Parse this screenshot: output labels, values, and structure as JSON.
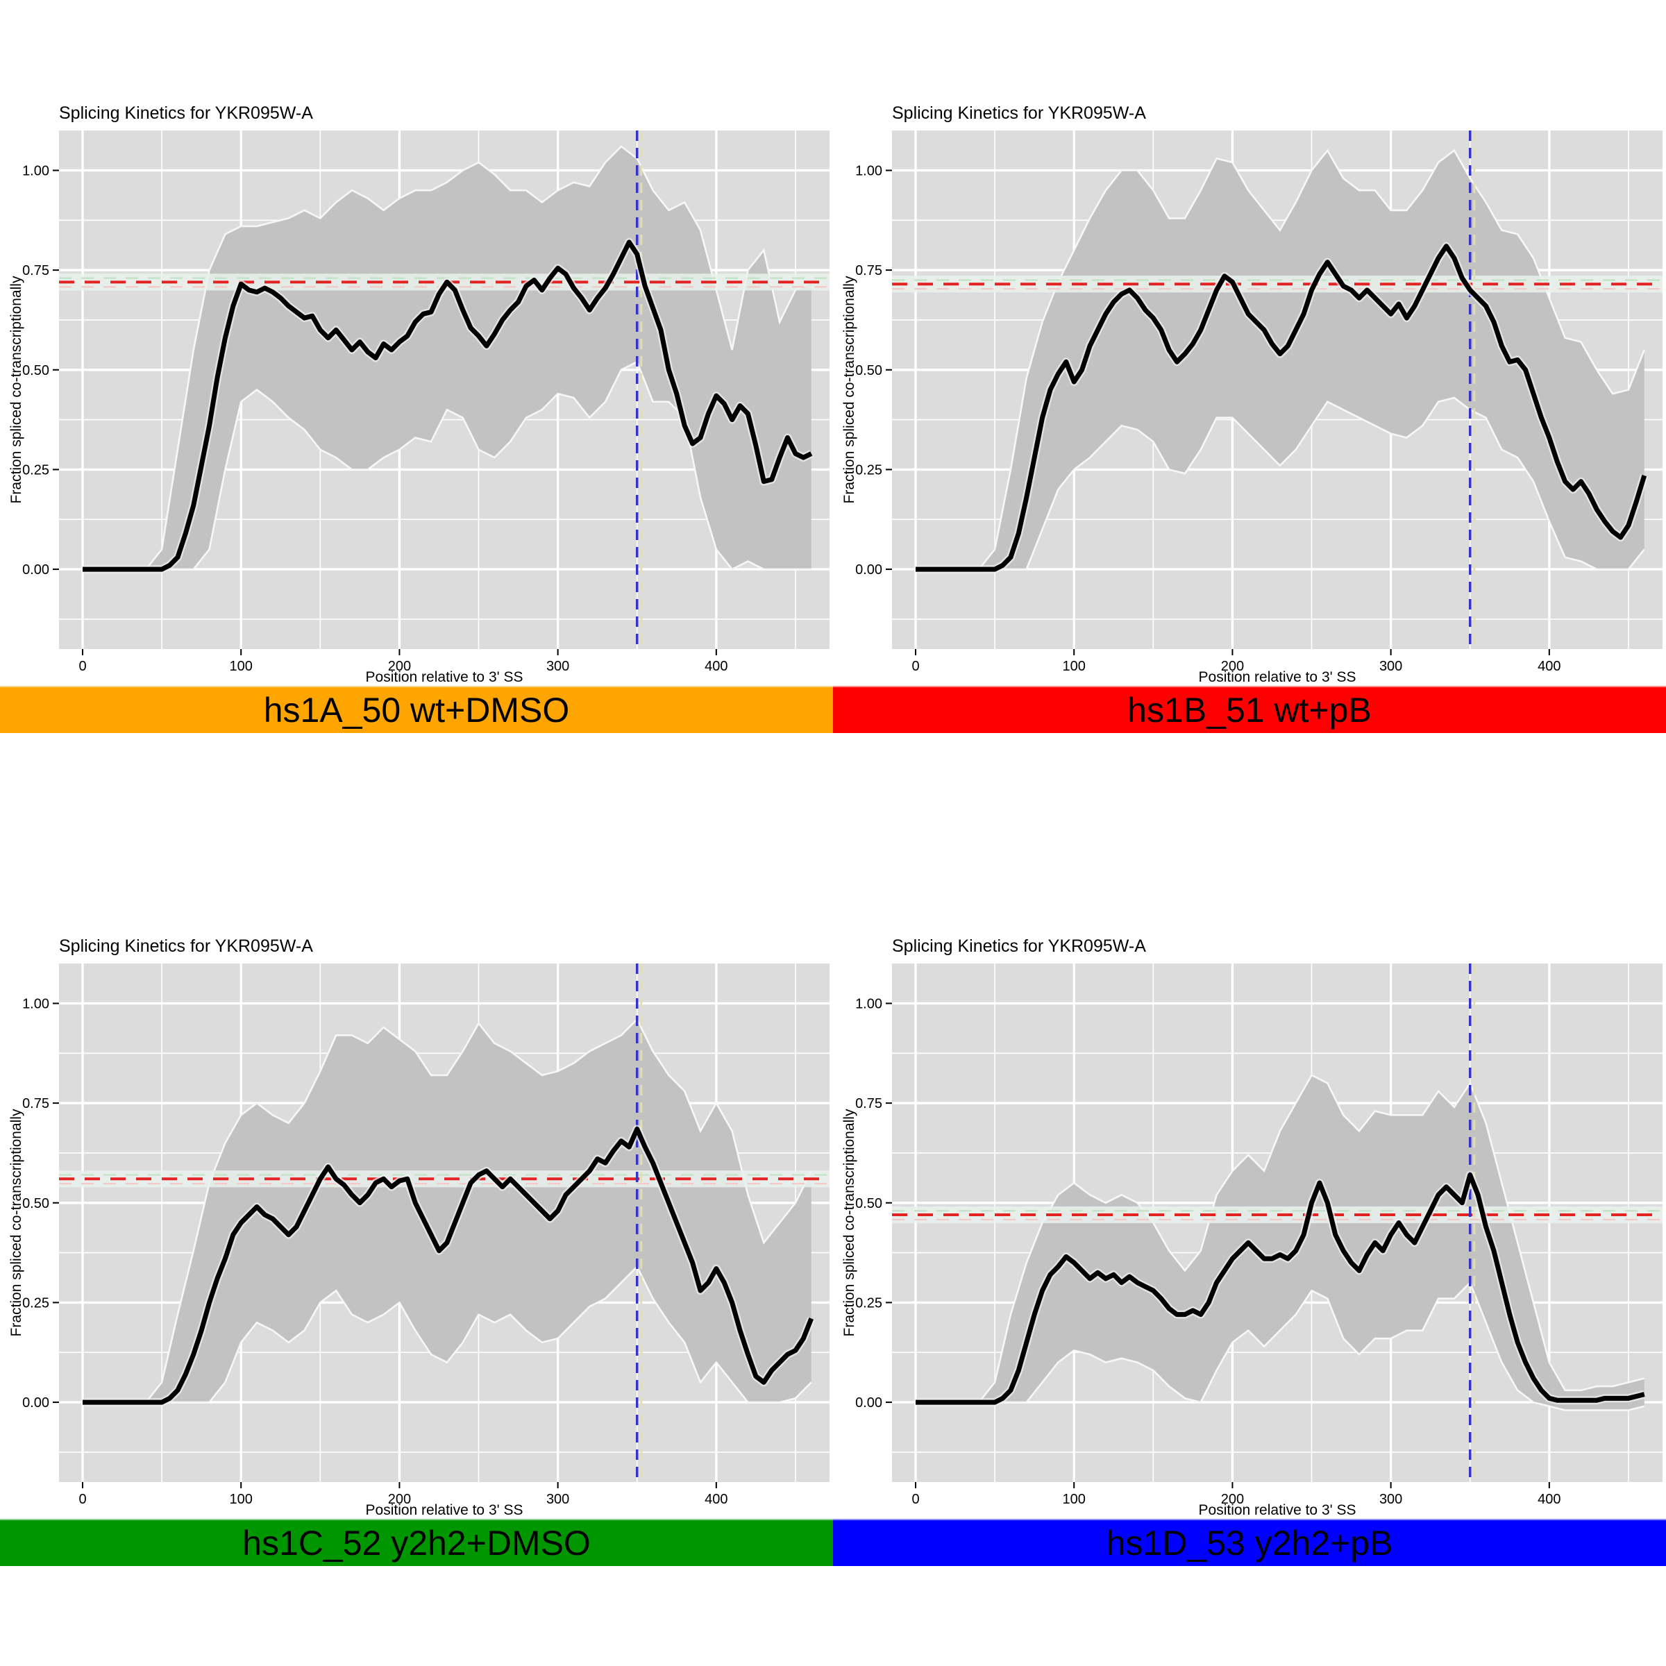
{
  "colors": {
    "page_bg": "#FFFFFF",
    "panel_bg": "#DCDCDC",
    "grid": "#FFFFFF",
    "ribbon": "#C2C2C2",
    "ribbon_edge": "#F7F7F7",
    "line": "#000000",
    "line_halo": "#F0F0F0",
    "hline": "#E32222",
    "band": "#EAF2EC",
    "band_green": "#BFE3C4",
    "band_pink": "#F2C9C6",
    "vline": "#3434C8",
    "vline_halo": "#DFDFBC",
    "text": "#000000",
    "banner_text": "#000000"
  },
  "chart_data": {
    "type": "line",
    "shared": {
      "title": "Splicing Kinetics for YKR095W-A",
      "xlabel": "Position relative to 3' SS",
      "ylabel": "Fraction spliced co-transcriptionally",
      "x_ticks": [
        0,
        100,
        200,
        300,
        400
      ],
      "x_tick_labels": [
        "0",
        "100",
        "200",
        "300",
        "400"
      ],
      "x_minor": [
        50,
        150,
        250,
        350,
        450
      ],
      "y_tick_values": [
        0,
        0.25,
        0.5,
        0.75,
        1.0
      ],
      "y_tick_labels": [
        "0.00",
        "0.25",
        "0.50",
        "0.75",
        "1.00"
      ],
      "y_minor": [
        -0.125,
        0.125,
        0.375,
        0.625,
        0.875
      ],
      "xlim": [
        -15,
        471
      ],
      "ylim": [
        -0.2,
        1.1
      ],
      "grid": true,
      "legend": "none",
      "vline_x": 350,
      "line_x": {
        "start": 0,
        "step": 5
      },
      "ribbon_x": {
        "start": 0,
        "step": 10
      }
    },
    "panels": [
      {
        "id": "hs1A_50",
        "banner_label": "hs1A_50 wt+DMSO",
        "banner_color": "#FFA500",
        "hline_y": 0.72,
        "line_y": [
          0,
          0,
          0,
          0,
          0,
          0,
          0,
          0,
          0,
          0,
          0,
          0.01,
          0.03,
          0.09,
          0.16,
          0.26,
          0.36,
          0.48,
          0.58,
          0.66,
          0.715,
          0.7,
          0.695,
          0.705,
          0.695,
          0.68,
          0.66,
          0.645,
          0.63,
          0.635,
          0.6,
          0.58,
          0.6,
          0.575,
          0.55,
          0.57,
          0.545,
          0.53,
          0.565,
          0.55,
          0.57,
          0.585,
          0.62,
          0.64,
          0.645,
          0.69,
          0.72,
          0.7,
          0.65,
          0.605,
          0.585,
          0.56,
          0.59,
          0.625,
          0.65,
          0.67,
          0.71,
          0.725,
          0.7,
          0.73,
          0.755,
          0.74,
          0.705,
          0.68,
          0.65,
          0.68,
          0.705,
          0.74,
          0.78,
          0.82,
          0.79,
          0.71,
          0.655,
          0.6,
          0.5,
          0.44,
          0.36,
          0.315,
          0.33,
          0.39,
          0.435,
          0.415,
          0.375,
          0.41,
          0.39,
          0.31,
          0.22,
          0.225,
          0.28,
          0.33,
          0.29,
          0.28,
          0.29
        ],
        "ribbon_upper": [
          0,
          0,
          0,
          0,
          0,
          0.05,
          0.3,
          0.55,
          0.75,
          0.84,
          0.86,
          0.86,
          0.87,
          0.88,
          0.9,
          0.88,
          0.92,
          0.95,
          0.93,
          0.9,
          0.93,
          0.95,
          0.95,
          0.97,
          1.0,
          1.02,
          0.99,
          0.95,
          0.95,
          0.92,
          0.95,
          0.97,
          0.96,
          1.02,
          1.06,
          1.03,
          0.95,
          0.9,
          0.92,
          0.85,
          0.7,
          0.55,
          0.75,
          0.8,
          0.62,
          0.7,
          0.72
        ],
        "ribbon_lower": [
          0,
          0,
          0,
          0,
          0,
          0,
          0,
          0,
          0.05,
          0.25,
          0.42,
          0.45,
          0.42,
          0.38,
          0.35,
          0.3,
          0.28,
          0.25,
          0.25,
          0.28,
          0.3,
          0.33,
          0.32,
          0.4,
          0.38,
          0.3,
          0.28,
          0.32,
          0.38,
          0.4,
          0.44,
          0.43,
          0.38,
          0.42,
          0.5,
          0.52,
          0.42,
          0.42,
          0.38,
          0.18,
          0.05,
          0,
          0.02,
          0,
          0,
          0,
          0
        ]
      },
      {
        "id": "hs1B_51",
        "banner_label": "hs1B_51 wt+pB",
        "banner_color": "#FF0000",
        "hline_y": 0.715,
        "line_y": [
          0,
          0,
          0,
          0,
          0,
          0,
          0,
          0,
          0,
          0,
          0,
          0.01,
          0.03,
          0.09,
          0.18,
          0.28,
          0.38,
          0.45,
          0.49,
          0.52,
          0.47,
          0.5,
          0.56,
          0.6,
          0.64,
          0.67,
          0.69,
          0.7,
          0.68,
          0.65,
          0.63,
          0.6,
          0.55,
          0.52,
          0.54,
          0.565,
          0.6,
          0.65,
          0.7,
          0.735,
          0.72,
          0.68,
          0.64,
          0.62,
          0.6,
          0.565,
          0.54,
          0.56,
          0.6,
          0.64,
          0.7,
          0.74,
          0.77,
          0.74,
          0.71,
          0.7,
          0.68,
          0.7,
          0.68,
          0.66,
          0.64,
          0.665,
          0.63,
          0.66,
          0.7,
          0.74,
          0.78,
          0.81,
          0.78,
          0.73,
          0.7,
          0.68,
          0.66,
          0.62,
          0.56,
          0.52,
          0.525,
          0.5,
          0.44,
          0.38,
          0.33,
          0.27,
          0.22,
          0.2,
          0.22,
          0.19,
          0.15,
          0.12,
          0.095,
          0.08,
          0.11,
          0.17,
          0.235
        ],
        "ribbon_upper": [
          0,
          0,
          0,
          0,
          0,
          0.05,
          0.25,
          0.48,
          0.62,
          0.72,
          0.8,
          0.88,
          0.95,
          1.0,
          1.0,
          0.95,
          0.88,
          0.88,
          0.95,
          1.03,
          1.02,
          0.95,
          0.9,
          0.85,
          0.92,
          1.0,
          1.05,
          0.98,
          0.95,
          0.95,
          0.9,
          0.9,
          0.95,
          1.02,
          1.05,
          0.98,
          0.92,
          0.85,
          0.84,
          0.78,
          0.68,
          0.58,
          0.57,
          0.5,
          0.44,
          0.45,
          0.55
        ],
        "ribbon_lower": [
          0,
          0,
          0,
          0,
          0,
          0,
          0,
          0,
          0.1,
          0.2,
          0.25,
          0.28,
          0.32,
          0.36,
          0.35,
          0.32,
          0.25,
          0.24,
          0.3,
          0.38,
          0.38,
          0.34,
          0.3,
          0.26,
          0.3,
          0.36,
          0.42,
          0.4,
          0.38,
          0.36,
          0.34,
          0.33,
          0.36,
          0.42,
          0.43,
          0.4,
          0.38,
          0.3,
          0.28,
          0.22,
          0.12,
          0.03,
          0.02,
          0,
          0,
          0,
          0.05
        ]
      },
      {
        "id": "hs1C_52",
        "banner_label": "hs1C_52 y2h2+DMSO",
        "banner_color": "#009600",
        "hline_y": 0.56,
        "line_y": [
          0,
          0,
          0,
          0,
          0,
          0,
          0,
          0,
          0,
          0,
          0,
          0.01,
          0.03,
          0.07,
          0.12,
          0.18,
          0.25,
          0.31,
          0.36,
          0.42,
          0.45,
          0.47,
          0.49,
          0.47,
          0.46,
          0.44,
          0.42,
          0.44,
          0.48,
          0.52,
          0.56,
          0.59,
          0.56,
          0.545,
          0.52,
          0.5,
          0.52,
          0.55,
          0.56,
          0.54,
          0.555,
          0.56,
          0.5,
          0.46,
          0.42,
          0.38,
          0.4,
          0.45,
          0.5,
          0.55,
          0.57,
          0.58,
          0.56,
          0.54,
          0.56,
          0.54,
          0.52,
          0.5,
          0.48,
          0.46,
          0.48,
          0.52,
          0.54,
          0.56,
          0.58,
          0.61,
          0.6,
          0.63,
          0.655,
          0.64,
          0.685,
          0.64,
          0.6,
          0.55,
          0.5,
          0.45,
          0.4,
          0.35,
          0.28,
          0.3,
          0.335,
          0.3,
          0.25,
          0.18,
          0.12,
          0.065,
          0.05,
          0.08,
          0.1,
          0.12,
          0.13,
          0.16,
          0.21
        ],
        "ribbon_upper": [
          0,
          0,
          0,
          0,
          0,
          0.05,
          0.22,
          0.38,
          0.55,
          0.65,
          0.72,
          0.75,
          0.72,
          0.7,
          0.75,
          0.83,
          0.92,
          0.92,
          0.9,
          0.94,
          0.91,
          0.88,
          0.82,
          0.82,
          0.88,
          0.95,
          0.9,
          0.88,
          0.85,
          0.82,
          0.83,
          0.85,
          0.88,
          0.9,
          0.92,
          0.96,
          0.88,
          0.82,
          0.78,
          0.68,
          0.75,
          0.68,
          0.52,
          0.4,
          0.45,
          0.5,
          0.58
        ],
        "ribbon_lower": [
          0,
          0,
          0,
          0,
          0,
          0,
          0,
          0,
          0,
          0.05,
          0.15,
          0.2,
          0.18,
          0.15,
          0.18,
          0.25,
          0.28,
          0.22,
          0.2,
          0.22,
          0.25,
          0.18,
          0.12,
          0.1,
          0.15,
          0.22,
          0.2,
          0.22,
          0.18,
          0.15,
          0.16,
          0.2,
          0.24,
          0.26,
          0.3,
          0.34,
          0.26,
          0.2,
          0.15,
          0.05,
          0.1,
          0.05,
          0,
          0,
          0,
          0.01,
          0.05
        ]
      },
      {
        "id": "hs1D_53",
        "banner_label": "hs1D_53 y2h2+pB",
        "banner_color": "#0000FF",
        "hline_y": 0.47,
        "line_y": [
          0,
          0,
          0,
          0,
          0,
          0,
          0,
          0,
          0,
          0,
          0,
          0.01,
          0.03,
          0.08,
          0.15,
          0.22,
          0.28,
          0.32,
          0.34,
          0.365,
          0.35,
          0.33,
          0.31,
          0.325,
          0.31,
          0.32,
          0.3,
          0.315,
          0.3,
          0.29,
          0.28,
          0.26,
          0.235,
          0.22,
          0.22,
          0.23,
          0.22,
          0.25,
          0.3,
          0.33,
          0.36,
          0.38,
          0.4,
          0.38,
          0.36,
          0.36,
          0.37,
          0.36,
          0.38,
          0.42,
          0.5,
          0.55,
          0.5,
          0.42,
          0.38,
          0.35,
          0.33,
          0.37,
          0.4,
          0.38,
          0.42,
          0.45,
          0.42,
          0.4,
          0.44,
          0.48,
          0.52,
          0.54,
          0.52,
          0.5,
          0.57,
          0.52,
          0.44,
          0.38,
          0.3,
          0.22,
          0.15,
          0.1,
          0.06,
          0.03,
          0.01,
          0.005,
          0.005,
          0.005,
          0.005,
          0.005,
          0.005,
          0.01,
          0.01,
          0.01,
          0.01,
          0.015,
          0.02
        ],
        "ribbon_upper": [
          0,
          0,
          0,
          0,
          0,
          0.05,
          0.22,
          0.35,
          0.45,
          0.52,
          0.55,
          0.52,
          0.5,
          0.52,
          0.5,
          0.45,
          0.38,
          0.33,
          0.38,
          0.52,
          0.58,
          0.62,
          0.58,
          0.68,
          0.75,
          0.82,
          0.8,
          0.72,
          0.68,
          0.73,
          0.72,
          0.72,
          0.72,
          0.78,
          0.74,
          0.8,
          0.7,
          0.55,
          0.4,
          0.25,
          0.1,
          0.03,
          0.03,
          0.04,
          0.04,
          0.05,
          0.06
        ],
        "ribbon_lower": [
          0,
          0,
          0,
          0,
          0,
          0,
          0,
          0,
          0.05,
          0.1,
          0.13,
          0.12,
          0.1,
          0.11,
          0.1,
          0.08,
          0.04,
          0.01,
          0,
          0.08,
          0.15,
          0.18,
          0.14,
          0.18,
          0.22,
          0.28,
          0.26,
          0.16,
          0.12,
          0.16,
          0.16,
          0.18,
          0.18,
          0.26,
          0.26,
          0.3,
          0.2,
          0.1,
          0.03,
          0,
          -0.01,
          -0.02,
          -0.02,
          -0.02,
          -0.02,
          -0.02,
          -0.01
        ]
      }
    ]
  }
}
